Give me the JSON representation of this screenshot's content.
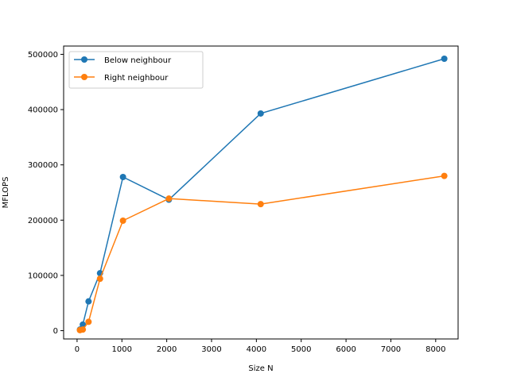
{
  "chart_data": {
    "type": "line",
    "xlabel": "Size N",
    "ylabel": "MFLOPS",
    "xlim": [
      -300,
      8500
    ],
    "ylim": [
      -15000,
      515000
    ],
    "xticks": [
      0,
      1000,
      2000,
      3000,
      4000,
      5000,
      6000,
      7000,
      8000
    ],
    "yticks": [
      0,
      100000,
      200000,
      300000,
      400000,
      500000
    ],
    "grid": false,
    "legend": "top-left",
    "series": [
      {
        "name": "Below neighbour",
        "color": "#1f77b4",
        "x": [
          64,
          128,
          256,
          512,
          1024,
          2048,
          4096,
          8192
        ],
        "y": [
          2000,
          11000,
          53000,
          104000,
          278000,
          237000,
          393000,
          492000
        ]
      },
      {
        "name": "Right neighbour",
        "color": "#ff7f0e",
        "x": [
          64,
          128,
          256,
          512,
          1024,
          2048,
          4096,
          8192
        ],
        "y": [
          1000,
          2000,
          16000,
          94000,
          199000,
          239000,
          229000,
          280000
        ]
      }
    ]
  }
}
